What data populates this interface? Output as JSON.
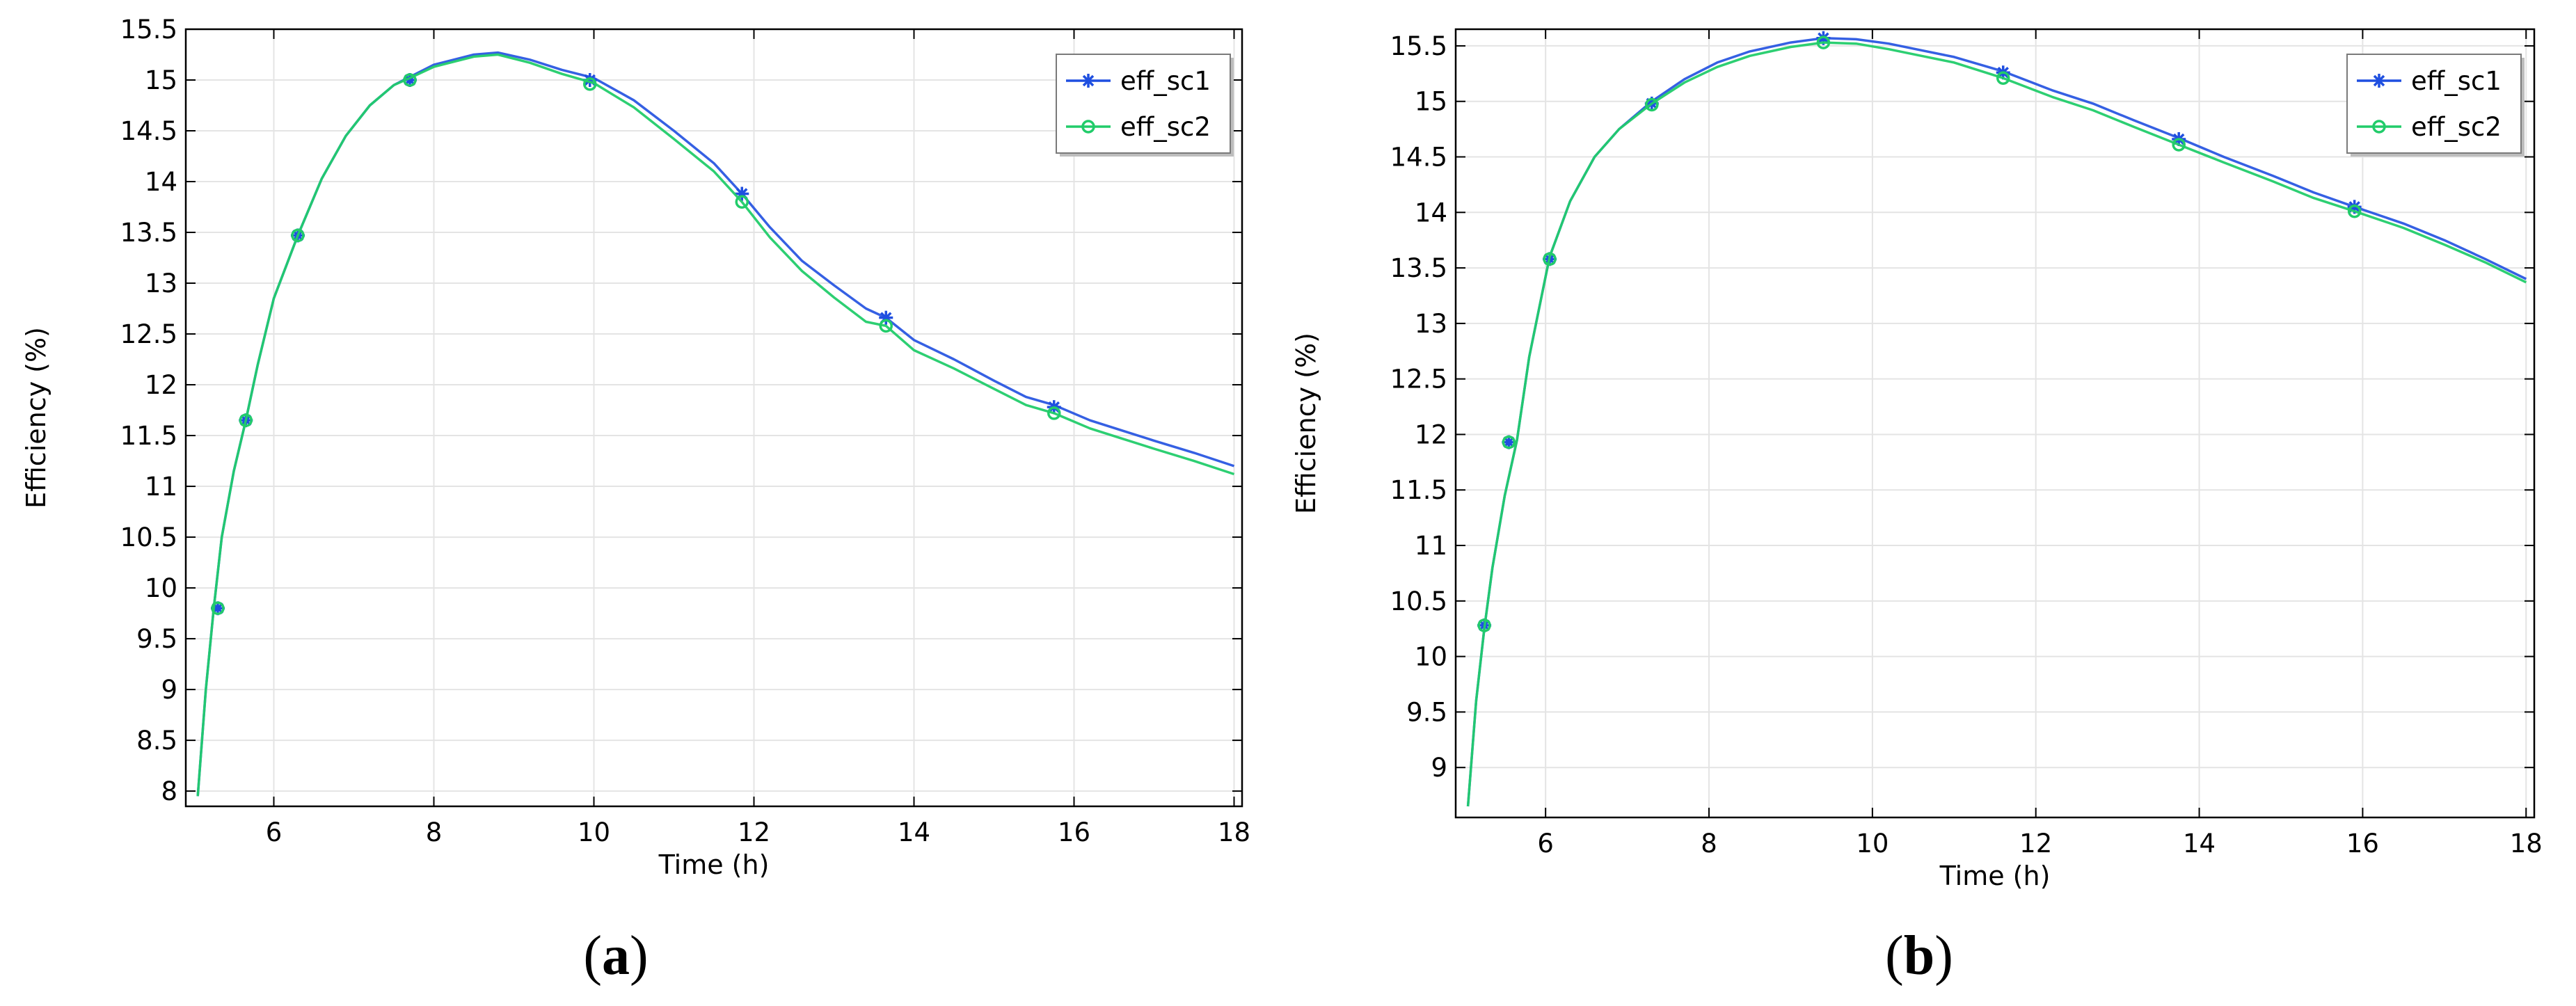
{
  "chart_data": [
    {
      "type": "line",
      "panel_label": "a",
      "xlabel": "Time (h)",
      "ylabel": "Efficiency (%)",
      "xlim": [
        4.9,
        18.1
      ],
      "ylim": [
        7.85,
        15.5
      ],
      "x_ticks": [
        6,
        8,
        10,
        12,
        14,
        16,
        18
      ],
      "y_ticks": [
        8,
        8.5,
        9,
        9.5,
        10,
        10.5,
        11,
        11.5,
        12,
        12.5,
        13,
        13.5,
        14,
        14.5,
        15,
        15.5
      ],
      "grid": true,
      "legend": "top-right",
      "series": [
        {
          "name": "eff_sc1",
          "color": "#1f4fe0",
          "marker": "asterisk",
          "x": [
            5.05,
            5.15,
            5.25,
            5.35,
            5.5,
            5.65,
            5.8,
            6.0,
            6.3,
            6.6,
            6.9,
            7.2,
            7.5,
            7.7,
            8.0,
            8.5,
            8.8,
            9.2,
            9.6,
            10.0,
            10.5,
            11.0,
            11.5,
            11.85,
            12.2,
            12.6,
            13.0,
            13.4,
            13.65,
            14.0,
            14.5,
            15.0,
            15.4,
            15.75,
            16.2,
            16.6,
            17.0,
            17.5,
            18.0
          ],
          "y": [
            7.95,
            9.0,
            9.8,
            10.5,
            11.15,
            11.65,
            12.2,
            12.85,
            13.47,
            14.03,
            14.45,
            14.75,
            14.95,
            15.03,
            15.15,
            15.25,
            15.27,
            15.2,
            15.1,
            15.02,
            14.8,
            14.5,
            14.18,
            13.88,
            13.55,
            13.22,
            12.98,
            12.75,
            12.66,
            12.44,
            12.25,
            12.04,
            11.88,
            11.8,
            11.65,
            11.55,
            11.45,
            11.33,
            11.2
          ],
          "marker_x": [
            5.3,
            5.65,
            6.3,
            7.7,
            9.95,
            11.85,
            13.65,
            15.75
          ],
          "marker_y": [
            9.8,
            11.65,
            13.47,
            15.0,
            15.0,
            13.88,
            12.66,
            11.78
          ]
        },
        {
          "name": "eff_sc2",
          "color": "#22cc6a",
          "marker": "circle",
          "x": [
            5.05,
            5.15,
            5.25,
            5.35,
            5.5,
            5.65,
            5.8,
            6.0,
            6.3,
            6.6,
            6.9,
            7.2,
            7.5,
            7.7,
            8.0,
            8.5,
            8.8,
            9.2,
            9.6,
            10.0,
            10.5,
            11.0,
            11.5,
            11.85,
            12.2,
            12.6,
            13.0,
            13.4,
            13.65,
            14.0,
            14.5,
            15.0,
            15.4,
            15.75,
            16.2,
            16.6,
            17.0,
            17.5,
            18.0
          ],
          "y": [
            7.95,
            9.0,
            9.8,
            10.5,
            11.15,
            11.65,
            12.2,
            12.85,
            13.47,
            14.03,
            14.45,
            14.75,
            14.95,
            15.02,
            15.13,
            15.23,
            15.25,
            15.17,
            15.06,
            14.97,
            14.73,
            14.42,
            14.1,
            13.8,
            13.45,
            13.12,
            12.86,
            12.62,
            12.58,
            12.34,
            12.16,
            11.96,
            11.8,
            11.72,
            11.57,
            11.47,
            11.37,
            11.25,
            11.12
          ],
          "marker_x": [
            5.3,
            5.65,
            6.3,
            7.7,
            9.95,
            11.85,
            13.65,
            15.75
          ],
          "marker_y": [
            9.8,
            11.65,
            13.47,
            15.0,
            14.96,
            13.8,
            12.58,
            11.72
          ]
        }
      ]
    },
    {
      "type": "line",
      "panel_label": "b",
      "xlabel": "Time (h)",
      "ylabel": "Efficiency (%)",
      "xlim": [
        4.9,
        18.1
      ],
      "ylim": [
        8.55,
        15.65
      ],
      "x_ticks": [
        6,
        8,
        10,
        12,
        14,
        16,
        18
      ],
      "y_ticks": [
        9,
        9.5,
        10,
        10.5,
        11,
        11.5,
        12,
        12.5,
        13,
        13.5,
        14,
        14.5,
        15,
        15.5
      ],
      "grid": true,
      "legend": "top-right",
      "series": [
        {
          "name": "eff_sc1",
          "color": "#1f4fe0",
          "marker": "asterisk",
          "x": [
            5.05,
            5.15,
            5.25,
            5.35,
            5.5,
            5.65,
            5.8,
            6.05,
            6.3,
            6.6,
            6.9,
            7.3,
            7.7,
            8.1,
            8.5,
            9.0,
            9.4,
            9.8,
            10.2,
            10.6,
            11.0,
            11.6,
            12.2,
            12.7,
            13.2,
            13.75,
            14.3,
            14.9,
            15.4,
            15.9,
            16.5,
            17.0,
            17.5,
            18.0
          ],
          "y": [
            8.65,
            9.6,
            10.25,
            10.8,
            11.45,
            11.95,
            12.7,
            13.6,
            14.1,
            14.5,
            14.75,
            15.0,
            15.2,
            15.35,
            15.45,
            15.53,
            15.57,
            15.56,
            15.52,
            15.46,
            15.4,
            15.27,
            15.1,
            14.98,
            14.83,
            14.67,
            14.5,
            14.33,
            14.18,
            14.05,
            13.9,
            13.75,
            13.58,
            13.4
          ],
          "marker_x": [
            5.25,
            5.55,
            6.05,
            7.3,
            9.4,
            11.6,
            13.75,
            15.9
          ],
          "marker_y": [
            10.28,
            11.93,
            13.58,
            14.98,
            15.57,
            15.26,
            14.66,
            14.05
          ]
        },
        {
          "name": "eff_sc2",
          "color": "#22cc6a",
          "marker": "circle",
          "x": [
            5.05,
            5.15,
            5.25,
            5.35,
            5.5,
            5.65,
            5.8,
            6.05,
            6.3,
            6.6,
            6.9,
            7.3,
            7.7,
            8.1,
            8.5,
            9.0,
            9.4,
            9.8,
            10.2,
            10.6,
            11.0,
            11.6,
            12.2,
            12.7,
            13.2,
            13.75,
            14.3,
            14.9,
            15.4,
            15.9,
            16.5,
            17.0,
            17.5,
            18.0
          ],
          "y": [
            8.65,
            9.6,
            10.25,
            10.8,
            11.45,
            11.95,
            12.7,
            13.6,
            14.1,
            14.5,
            14.75,
            14.98,
            15.17,
            15.31,
            15.41,
            15.49,
            15.53,
            15.52,
            15.47,
            15.41,
            15.35,
            15.21,
            15.04,
            14.92,
            14.77,
            14.61,
            14.45,
            14.28,
            14.13,
            14.01,
            13.86,
            13.71,
            13.55,
            13.37
          ],
          "marker_x": [
            5.25,
            5.55,
            6.05,
            7.3,
            9.4,
            11.6,
            13.75,
            15.9
          ],
          "marker_y": [
            10.28,
            11.93,
            13.58,
            14.97,
            15.53,
            15.21,
            14.61,
            14.01
          ]
        }
      ]
    }
  ]
}
